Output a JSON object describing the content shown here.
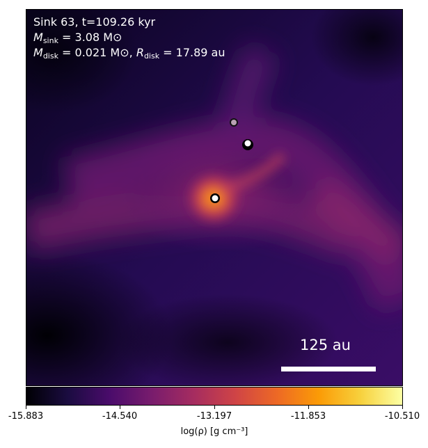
{
  "overlay": {
    "line1": "Sink 63, t=109.26 kyr",
    "line2_sym": "M",
    "line2_sub": "sink",
    "line2_rest": " = 3.08 M⊙",
    "line3_sym1": "M",
    "line3_sub1": "disk",
    "line3_mid": " = 0.021 M⊙, ",
    "line3_sym2": "R",
    "line3_sub2": "disk",
    "line3_rest": " = 17.89 au"
  },
  "scalebar": {
    "label": "125 au"
  },
  "colorbar": {
    "ticks": [
      "-15.883",
      "-14.540",
      "-13.197",
      "-11.853",
      "-10.510"
    ],
    "label": "log(ρ) [g cm⁻³]",
    "colormap": "inferno"
  },
  "sinks": [
    {
      "type": "sink-particle",
      "style": "white-center-black-ring"
    },
    {
      "type": "sink-particle",
      "style": "white-center-black-ring"
    },
    {
      "type": "sink-particle",
      "style": "grey-faint"
    }
  ],
  "colors": {
    "background_dark": "#000004",
    "deep_purple": "#2a0a5e",
    "magenta": "#a52c60",
    "orange": "#f57d15",
    "yellow": "#fcffa4"
  }
}
